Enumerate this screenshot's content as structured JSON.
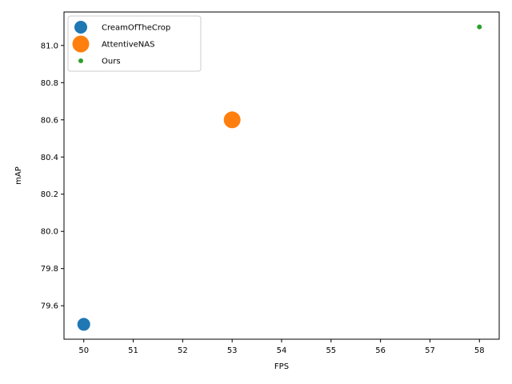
{
  "chart_data": {
    "type": "scatter",
    "title": "",
    "xlabel": "FPS",
    "ylabel": "mAP",
    "xlim": [
      49.6,
      58.4
    ],
    "ylim": [
      79.42,
      81.18
    ],
    "xticks": [
      "50",
      "51",
      "52",
      "53",
      "54",
      "55",
      "56",
      "57",
      "58"
    ],
    "yticks": [
      "79.6",
      "79.8",
      "80.0",
      "80.2",
      "80.4",
      "80.6",
      "80.8",
      "81.0"
    ],
    "grid": false,
    "legend_position": "upper-left",
    "series": [
      {
        "name": "CreamOfTheCrop",
        "color": "#1f77b4",
        "marker": "large",
        "points": [
          {
            "x": 50,
            "y": 79.5
          }
        ]
      },
      {
        "name": "AttentiveNAS",
        "color": "#ff7f0e",
        "marker": "extra-large",
        "points": [
          {
            "x": 53,
            "y": 80.6
          }
        ]
      },
      {
        "name": "Ours",
        "color": "#2ca02c",
        "marker": "small",
        "points": [
          {
            "x": 58,
            "y": 81.1
          }
        ]
      }
    ]
  }
}
